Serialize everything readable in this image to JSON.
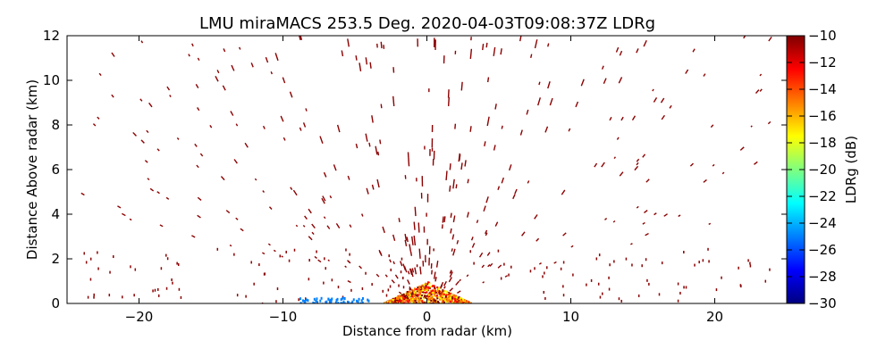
{
  "chart_data": {
    "type": "heatmap",
    "title": "LMU miraMACS 253.5 Deg. 2020-04-03T09:08:37Z  LDRg",
    "xlabel": "Distance from radar (km)",
    "ylabel": "Distance Above radar  (km)",
    "xlim": [
      -25,
      25
    ],
    "ylim": [
      0,
      12
    ],
    "x_ticks": [
      -20,
      -10,
      0,
      10,
      20
    ],
    "y_ticks": [
      0,
      2,
      4,
      6,
      8,
      10,
      12
    ],
    "grid": false,
    "colorbar": {
      "label": "LDRg (dB)",
      "range": [
        -30,
        -10
      ],
      "ticks": [
        -10,
        -12,
        -14,
        -16,
        -18,
        -20,
        -22,
        -24,
        -26,
        -28,
        -30
      ],
      "colormap": "jet",
      "colors": [
        "#00007f",
        "#0000ff",
        "#007fff",
        "#00ffff",
        "#7fff7f",
        "#ffff00",
        "#ff7f00",
        "#ff0000",
        "#7f0000"
      ]
    },
    "noise_streaks": {
      "description_value_dB": -10,
      "color": "#8b0000",
      "near_radar_cluster": {
        "x_range": [
          -3,
          3
        ],
        "y_range": [
          0,
          1
        ],
        "dominant_values_dB": [
          -10,
          -12,
          -14,
          -16,
          -18
        ]
      },
      "low_ldr_returns": {
        "x_range": [
          -9,
          -4
        ],
        "y_range": [
          0,
          0.3
        ],
        "values_dB": [
          -24,
          -26
        ]
      }
    }
  }
}
